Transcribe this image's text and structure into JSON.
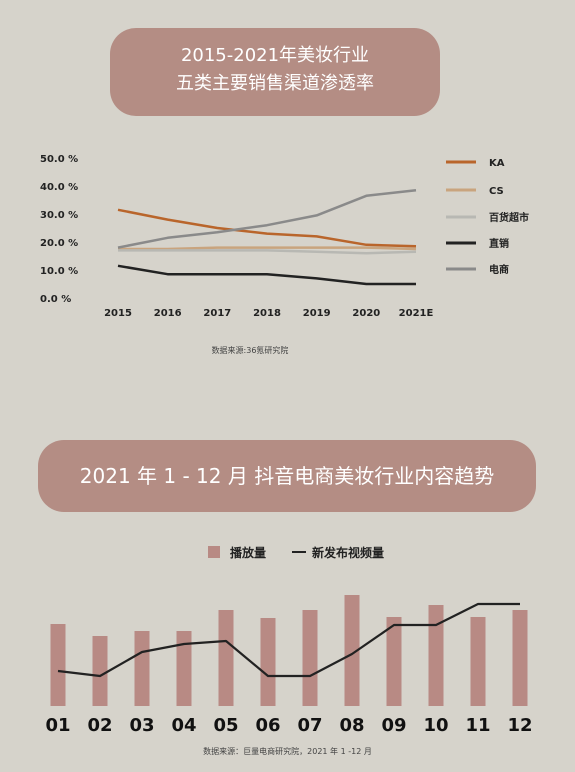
{
  "chart_data": [
    {
      "type": "line",
      "title": "2015-2021年美妆行业",
      "subtitle": "五类主要销售渠道渗透率",
      "categories": [
        "2015",
        "2016",
        "2017",
        "2018",
        "2019",
        "2020",
        "2021E"
      ],
      "ylim": [
        0,
        50
      ],
      "yticks": [
        "0.0 %",
        "10.0 %",
        "20.0 %",
        "30.0 %",
        "40.0 %",
        "50.0 %"
      ],
      "series": [
        {
          "name": "KA",
          "color": "#b9652b",
          "values": [
            31.5,
            28,
            25,
            23,
            22,
            19,
            18.5
          ]
        },
        {
          "name": "CS",
          "color": "#c9a47e",
          "values": [
            17.5,
            17.5,
            18,
            18,
            18,
            18,
            17.5
          ]
        },
        {
          "name": "百货超市",
          "color": "#b8b8b3",
          "values": [
            17,
            17,
            17,
            17,
            16.5,
            16,
            16.5
          ]
        },
        {
          "name": "直销",
          "color": "#222222",
          "values": [
            11.5,
            8.5,
            8.5,
            8.5,
            7,
            5,
            5
          ]
        },
        {
          "name": "电商",
          "color": "#8a8a8a",
          "values": [
            18,
            21.5,
            23.5,
            26,
            29.5,
            36.5,
            38.5
          ]
        }
      ],
      "legend_position": "right",
      "source": "数据来源:36氪研究院"
    },
    {
      "type": "bar+line",
      "title": "2021 年 1 - 12 月 抖音电商美妆行业内容趋势",
      "categories": [
        "01",
        "02",
        "03",
        "04",
        "05",
        "06",
        "07",
        "08",
        "09",
        "10",
        "11",
        "12"
      ],
      "bar_series": {
        "name": "播放量",
        "color": "#b88a84",
        "values": [
          82,
          70,
          75,
          75,
          96,
          88,
          96,
          111,
          89,
          101,
          89,
          96
        ]
      },
      "line_series": {
        "name": "新发布视频量",
        "color": "#222222",
        "values": [
          35,
          30,
          54,
          62,
          65,
          30,
          30,
          52,
          81,
          81,
          102,
          102
        ]
      },
      "ylim": [
        0,
        120
      ],
      "legend_position": "top",
      "source": "数据来源：巨量电商研究院，2021 年 1 -12 月"
    }
  ]
}
